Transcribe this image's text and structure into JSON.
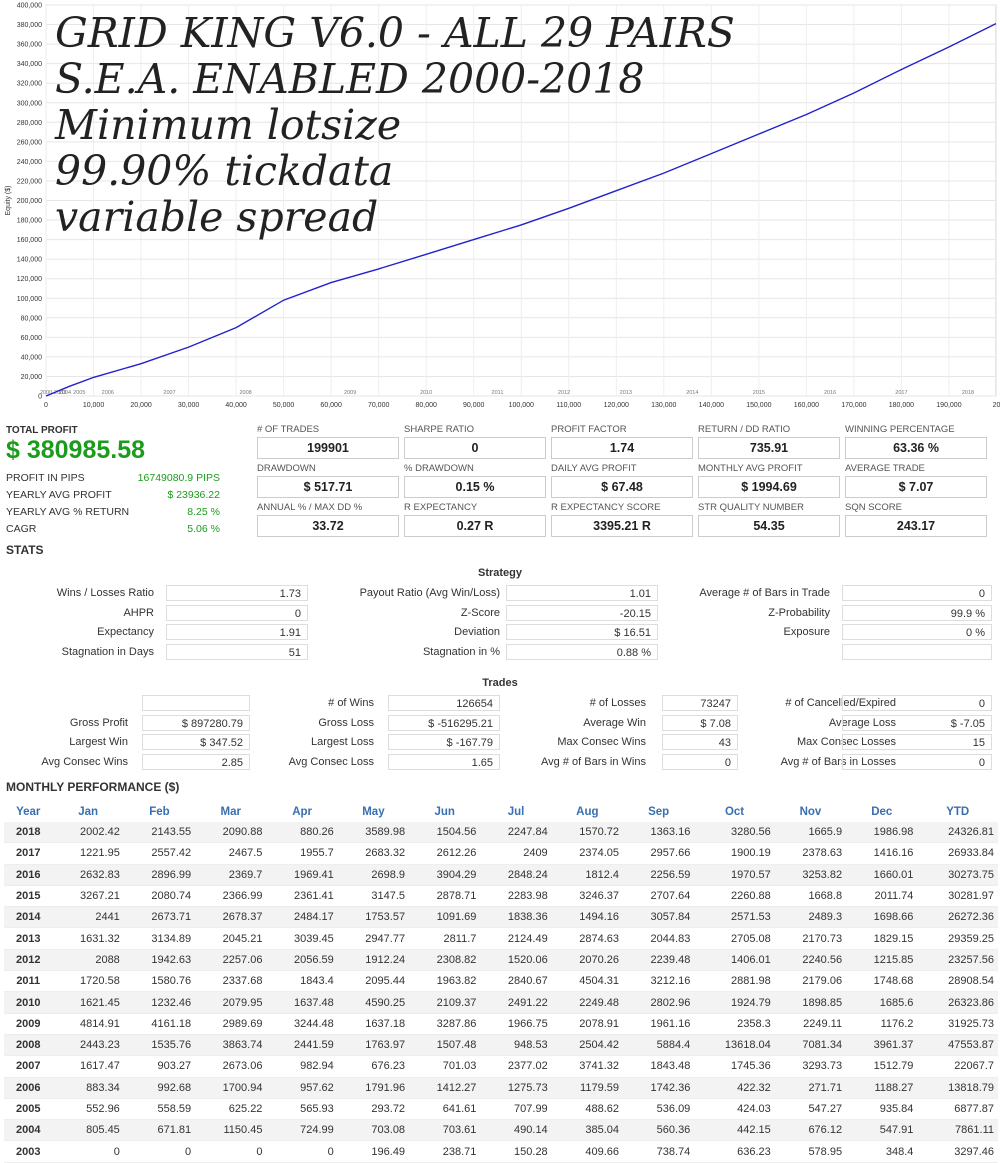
{
  "chart_data": {
    "type": "line",
    "ylabel": "Equity ($)",
    "y_ticks": [
      "0",
      "20,000",
      "40,000",
      "60,000",
      "80,000",
      "100,000",
      "120,000",
      "140,000",
      "160,000",
      "180,000",
      "200,000",
      "220,000",
      "240,000",
      "260,000",
      "280,000",
      "300,000",
      "320,000",
      "340,000",
      "360,000",
      "380,000",
      "400,000"
    ],
    "ylim": [
      0,
      400000
    ],
    "x_ticks": [
      "0",
      "10,000",
      "20,000",
      "30,000",
      "40,000",
      "50,000",
      "60,000",
      "70,000",
      "80,000",
      "90,000",
      "100,000",
      "110,000",
      "120,000",
      "130,000",
      "140,000",
      "150,000",
      "160,000",
      "170,000",
      "180,000",
      "190,000",
      "20"
    ],
    "xlim": [
      0,
      199901
    ],
    "year_labels": [
      "2000-2003",
      "2004",
      "2005",
      "2006",
      "2007",
      "2008",
      "2009",
      "2010",
      "2011",
      "2012",
      "2013",
      "2014",
      "2015",
      "2016",
      "2017",
      "2018"
    ],
    "year_label_x": [
      1500,
      4000,
      7000,
      13000,
      26000,
      42000,
      64000,
      80000,
      95000,
      109000,
      122000,
      136000,
      150000,
      165000,
      180000,
      194000
    ],
    "grid": true,
    "series": [
      {
        "color": "#2222cc",
        "x": [
          0,
          5000,
          10000,
          20000,
          30000,
          40000,
          50000,
          60000,
          70000,
          80000,
          90000,
          100000,
          110000,
          120000,
          130000,
          140000,
          150000,
          160000,
          170000,
          180000,
          190000,
          199901
        ],
        "y": [
          0,
          10000,
          19000,
          33000,
          50000,
          70000,
          98000,
          116000,
          130000,
          145000,
          160000,
          175000,
          192000,
          210000,
          228000,
          248000,
          268000,
          288000,
          310000,
          334000,
          357000,
          380986
        ]
      }
    ]
  },
  "overlay": {
    "line1": "GRID KING V6.0 - ALL 29 PAIRS",
    "line2": "S.E.A. ENABLED 2000-2018",
    "line3": "Minimum lotsize",
    "line4": "99.90% tickdata",
    "line5": "variable spread"
  },
  "summary": {
    "total_profit_label": "TOTAL PROFIT",
    "total_profit": "$ 380985.58",
    "profit_pips_label": "PROFIT IN PIPS",
    "profit_pips": "16749080.9 PIPS",
    "yearly_avg_profit_label": "YEARLY AVG PROFIT",
    "yearly_avg_profit": "$ 23936.22",
    "yearly_avg_return_label": "YEARLY AVG % RETURN",
    "yearly_avg_return": "8.25 %",
    "cagr_label": "CAGR",
    "cagr": "5.06 %"
  },
  "metrics": [
    {
      "label": "# OF TRADES",
      "value": "199901"
    },
    {
      "label": "SHARPE RATIO",
      "value": "0"
    },
    {
      "label": "PROFIT FACTOR",
      "value": "1.74"
    },
    {
      "label": "RETURN / DD RATIO",
      "value": "735.91"
    },
    {
      "label": "WINNING PERCENTAGE",
      "value": "63.36 %"
    },
    {
      "label": "DRAWDOWN",
      "value": "$ 517.71"
    },
    {
      "label": "% DRAWDOWN",
      "value": "0.15 %"
    },
    {
      "label": "DAILY AVG PROFIT",
      "value": "$ 67.48"
    },
    {
      "label": "MONTHLY AVG PROFIT",
      "value": "$ 1994.69"
    },
    {
      "label": "AVERAGE TRADE",
      "value": "$ 7.07"
    },
    {
      "label": "ANNUAL % / MAX DD %",
      "value": "33.72"
    },
    {
      "label": "R EXPECTANCY",
      "value": "0.27 R"
    },
    {
      "label": "R EXPECTANCY SCORE",
      "value": "3395.21 R"
    },
    {
      "label": "STR QUALITY NUMBER",
      "value": "54.35"
    },
    {
      "label": "SQN SCORE",
      "value": "243.17"
    }
  ],
  "stats_title": "STATS",
  "strategy": {
    "title": "Strategy",
    "rows": [
      [
        [
          "Wins / Losses Ratio",
          "1.73"
        ],
        [
          "Payout Ratio (Avg Win/Loss)",
          "1.01"
        ],
        [
          "Average # of Bars in Trade",
          "0"
        ]
      ],
      [
        [
          "AHPR",
          "0"
        ],
        [
          "Z-Score",
          "-20.15"
        ],
        [
          "Z-Probability",
          "99.9 %"
        ]
      ],
      [
        [
          "Expectancy",
          "1.91"
        ],
        [
          "Deviation",
          "$ 16.51"
        ],
        [
          "Exposure",
          "0 %"
        ]
      ],
      [
        [
          "Stagnation in Days",
          "51"
        ],
        [
          "Stagnation in %",
          "0.88 %"
        ],
        [
          "",
          ""
        ]
      ]
    ]
  },
  "trades": {
    "title": "Trades",
    "rows": [
      [
        [
          "",
          ""
        ],
        [
          "# of Wins",
          "126654"
        ],
        [
          "# of Losses",
          "73247"
        ],
        [
          "# of Cancelled/Expired",
          "0"
        ]
      ],
      [
        [
          "Gross Profit",
          "$ 897280.79"
        ],
        [
          "Gross Loss",
          "$ -516295.21"
        ],
        [
          "Average Win",
          "$ 7.08"
        ],
        [
          "Average Loss",
          "$ -7.05"
        ]
      ],
      [
        [
          "Largest Win",
          "$ 347.52"
        ],
        [
          "Largest Loss",
          "$ -167.79"
        ],
        [
          "Max Consec Wins",
          "43"
        ],
        [
          "Max Consec Losses",
          "15"
        ]
      ],
      [
        [
          "Avg Consec Wins",
          "2.85"
        ],
        [
          "Avg Consec Loss",
          "1.65"
        ],
        [
          "Avg # of Bars in Wins",
          "0"
        ],
        [
          "Avg # of Bars in Losses",
          "0"
        ]
      ]
    ]
  },
  "monthly": {
    "title": "MONTHLY PERFORMANCE ($)",
    "headers": [
      "Year",
      "Jan",
      "Feb",
      "Mar",
      "Apr",
      "May",
      "Jun",
      "Jul",
      "Aug",
      "Sep",
      "Oct",
      "Nov",
      "Dec",
      "YTD"
    ],
    "rows": [
      [
        "2018",
        "2002.42",
        "2143.55",
        "2090.88",
        "880.26",
        "3589.98",
        "1504.56",
        "2247.84",
        "1570.72",
        "1363.16",
        "3280.56",
        "1665.9",
        "1986.98",
        "24326.81"
      ],
      [
        "2017",
        "1221.95",
        "2557.42",
        "2467.5",
        "1955.7",
        "2683.32",
        "2612.26",
        "2409",
        "2374.05",
        "2957.66",
        "1900.19",
        "2378.63",
        "1416.16",
        "26933.84"
      ],
      [
        "2016",
        "2632.83",
        "2896.99",
        "2369.7",
        "1969.41",
        "2698.9",
        "3904.29",
        "2848.24",
        "1812.4",
        "2256.59",
        "1970.57",
        "3253.82",
        "1660.01",
        "30273.75"
      ],
      [
        "2015",
        "3267.21",
        "2080.74",
        "2366.99",
        "2361.41",
        "3147.5",
        "2878.71",
        "2283.98",
        "3246.37",
        "2707.64",
        "2260.88",
        "1668.8",
        "2011.74",
        "30281.97"
      ],
      [
        "2014",
        "2441",
        "2673.71",
        "2678.37",
        "2484.17",
        "1753.57",
        "1091.69",
        "1838.36",
        "1494.16",
        "3057.84",
        "2571.53",
        "2489.3",
        "1698.66",
        "26272.36"
      ],
      [
        "2013",
        "1631.32",
        "3134.89",
        "2045.21",
        "3039.45",
        "2947.77",
        "2811.7",
        "2124.49",
        "2874.63",
        "2044.83",
        "2705.08",
        "2170.73",
        "1829.15",
        "29359.25"
      ],
      [
        "2012",
        "2088",
        "1942.63",
        "2257.06",
        "2056.59",
        "1912.24",
        "2308.82",
        "1520.06",
        "2070.26",
        "2239.48",
        "1406.01",
        "2240.56",
        "1215.85",
        "23257.56"
      ],
      [
        "2011",
        "1720.58",
        "1580.76",
        "2337.68",
        "1843.4",
        "2095.44",
        "1963.82",
        "2840.67",
        "4504.31",
        "3212.16",
        "2881.98",
        "2179.06",
        "1748.68",
        "28908.54"
      ],
      [
        "2010",
        "1621.45",
        "1232.46",
        "2079.95",
        "1637.48",
        "4590.25",
        "2109.37",
        "2491.22",
        "2249.48",
        "2802.96",
        "1924.79",
        "1898.85",
        "1685.6",
        "26323.86"
      ],
      [
        "2009",
        "4814.91",
        "4161.18",
        "2989.69",
        "3244.48",
        "1637.18",
        "3287.86",
        "1966.75",
        "2078.91",
        "1961.16",
        "2358.3",
        "2249.11",
        "1176.2",
        "31925.73"
      ],
      [
        "2008",
        "2443.23",
        "1535.76",
        "3863.74",
        "2441.59",
        "1763.97",
        "1507.48",
        "948.53",
        "2504.42",
        "5884.4",
        "13618.04",
        "7081.34",
        "3961.37",
        "47553.87"
      ],
      [
        "2007",
        "1617.47",
        "903.27",
        "2673.06",
        "982.94",
        "676.23",
        "701.03",
        "2377.02",
        "3741.32",
        "1843.48",
        "1745.36",
        "3293.73",
        "1512.79",
        "22067.7"
      ],
      [
        "2006",
        "883.34",
        "992.68",
        "1700.94",
        "957.62",
        "1791.96",
        "1412.27",
        "1275.73",
        "1179.59",
        "1742.36",
        "422.32",
        "271.71",
        "1188.27",
        "13818.79"
      ],
      [
        "2005",
        "552.96",
        "558.59",
        "625.22",
        "565.93",
        "293.72",
        "641.61",
        "707.99",
        "488.62",
        "536.09",
        "424.03",
        "547.27",
        "935.84",
        "6877.87"
      ],
      [
        "2004",
        "805.45",
        "671.81",
        "1150.45",
        "724.99",
        "703.08",
        "703.61",
        "490.14",
        "385.04",
        "560.36",
        "442.15",
        "676.12",
        "547.91",
        "7861.11"
      ],
      [
        "2003",
        "0",
        "0",
        "0",
        "0",
        "196.49",
        "238.71",
        "150.28",
        "409.66",
        "738.74",
        "636.23",
        "578.95",
        "348.4",
        "3297.46"
      ]
    ]
  }
}
